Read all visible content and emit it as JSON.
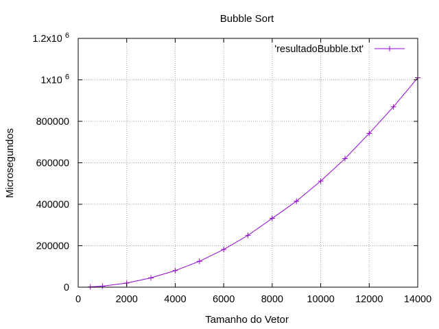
{
  "chart_data": {
    "type": "line",
    "title": "Bubble Sort",
    "xlabel": "Tamanho do Vetor",
    "ylabel": "Microsegundos",
    "xlim": [
      0,
      14000
    ],
    "ylim": [
      0,
      1200000
    ],
    "xticks": [
      {
        "value": 0,
        "label": "0"
      },
      {
        "value": 2000,
        "label": "2000"
      },
      {
        "value": 4000,
        "label": "4000"
      },
      {
        "value": 6000,
        "label": "6000"
      },
      {
        "value": 8000,
        "label": "8000"
      },
      {
        "value": 10000,
        "label": "10000"
      },
      {
        "value": 12000,
        "label": "12000"
      },
      {
        "value": 14000,
        "label": "14000"
      }
    ],
    "yticks": [
      {
        "value": 0,
        "label": "0"
      },
      {
        "value": 200000,
        "label": "200000"
      },
      {
        "value": 400000,
        "label": "400000"
      },
      {
        "value": 600000,
        "label": "600000"
      },
      {
        "value": 800000,
        "label": "800000"
      },
      {
        "value": 1000000,
        "label": "1x10",
        "exp": "6"
      },
      {
        "value": 1200000,
        "label": "1.2x10",
        "exp": "6"
      }
    ],
    "grid": true,
    "legend_position": "top-right",
    "series": [
      {
        "name": "'resultadoBubble.txt'",
        "color": "#9400d3",
        "marker": "plus",
        "x": [
          500,
          1000,
          2000,
          3000,
          4000,
          5000,
          6000,
          7000,
          8000,
          9000,
          10000,
          11000,
          12000,
          13000,
          14000
        ],
        "y": [
          1500,
          5000,
          20000,
          45000,
          80000,
          125000,
          182000,
          250000,
          332000,
          415000,
          512000,
          620000,
          742000,
          870000,
          1010000
        ]
      }
    ]
  }
}
